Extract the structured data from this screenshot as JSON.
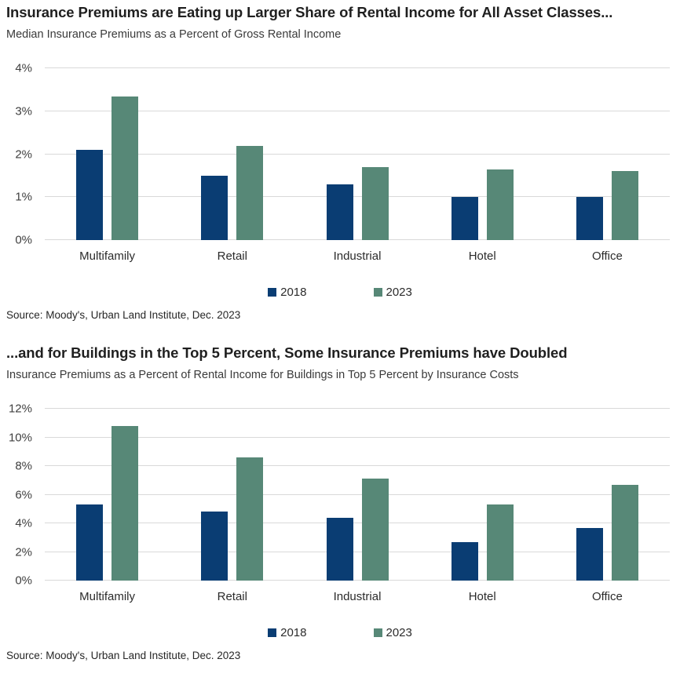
{
  "colors": {
    "series_2018": "#0a3d73",
    "series_2023": "#578877",
    "gridline": "#d9d9d9",
    "title_text": "#1f1f1f",
    "body_text": "#3a3a3a"
  },
  "chart_data": [
    {
      "type": "bar",
      "title": "Insurance Premiums are Eating up Larger Share of Rental Income for All Asset Classes...",
      "subtitle": "Median Insurance Premiums as a Percent of Gross Rental Income",
      "source": "Source: Moody's, Urban Land Institute, Dec. 2023",
      "categories": [
        "Multifamily",
        "Retail",
        "Industrial",
        "Hotel",
        "Office"
      ],
      "series": [
        {
          "name": "2018",
          "color": "#0a3d73",
          "values": [
            2.1,
            1.5,
            1.3,
            1.0,
            1.0
          ]
        },
        {
          "name": "2023",
          "color": "#578877",
          "values": [
            3.35,
            2.2,
            1.7,
            1.65,
            1.6
          ]
        }
      ],
      "ylim": [
        0,
        4
      ],
      "ytick_step": 1,
      "ytick_suffix": "%",
      "grid": true,
      "legend_position": "bottom-center"
    },
    {
      "type": "bar",
      "title": "...and for Buildings in the Top 5 Percent, Some Insurance Premiums have Doubled",
      "subtitle": "Insurance Premiums as a Percent of Rental Income for Buildings in Top 5 Percent by Insurance Costs",
      "source": "Source: Moody's, Urban Land Institute, Dec. 2023",
      "categories": [
        "Multifamily",
        "Retail",
        "Industrial",
        "Hotel",
        "Office"
      ],
      "series": [
        {
          "name": "2018",
          "color": "#0a3d73",
          "values": [
            5.3,
            4.8,
            4.4,
            2.7,
            3.65
          ]
        },
        {
          "name": "2023",
          "color": "#578877",
          "values": [
            10.8,
            8.6,
            7.1,
            5.3,
            6.7
          ]
        }
      ],
      "ylim": [
        0,
        12
      ],
      "ytick_step": 2,
      "ytick_suffix": "%",
      "grid": true,
      "legend_position": "bottom-center"
    }
  ]
}
